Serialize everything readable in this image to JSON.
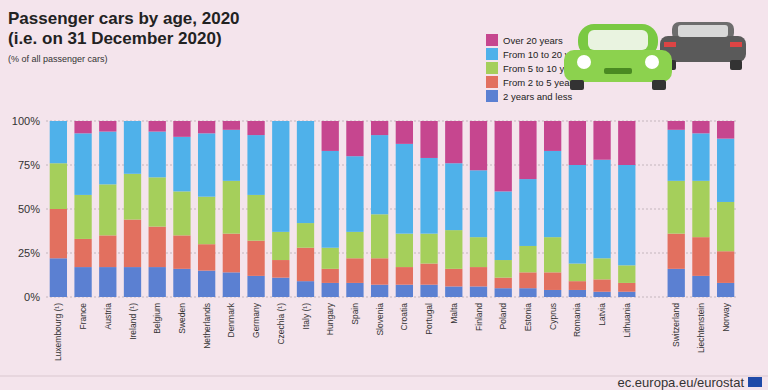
{
  "chart_data": {
    "type": "bar",
    "stacked": true,
    "title": "Passenger cars by age, 2020",
    "subtitle": "(i.e. on 31 December 2020)",
    "y_label": "(% of all passenger cars)",
    "source": "ec.europa.eu/eurostat",
    "legend": "upper right",
    "grid": true,
    "ylim": [
      0,
      100
    ],
    "yticks": [
      {
        "value": 0,
        "label": "0%"
      },
      {
        "value": 25,
        "label": "25%"
      },
      {
        "value": 50,
        "label": "50%"
      },
      {
        "value": 75,
        "label": "75%"
      },
      {
        "value": 100,
        "label": "100%"
      }
    ],
    "categories": [
      "Luxembourg (¹)",
      "France",
      "Austria",
      "Ireland (¹)",
      "Belgium",
      "Sweden",
      "Netherlands",
      "Denmark",
      "Germany",
      "Czechia (¹)",
      "Italy (¹)",
      "Hungary",
      "Spain",
      "Slovenia",
      "Croatia",
      "Portugal",
      "Malta",
      "Finland",
      "Poland",
      "Estonia",
      "Cyprus",
      "Romania",
      "Latvia",
      "Lithuania",
      null,
      "Switzerland",
      "Liechtenstein",
      "Norway"
    ],
    "series": [
      {
        "name": "2 years and less",
        "color": "#5b80d2",
        "values": [
          22,
          17,
          17,
          17,
          17,
          16,
          15,
          14,
          12,
          11,
          9,
          8,
          8,
          7,
          7,
          7,
          6,
          6,
          5,
          5,
          4,
          4,
          3,
          3,
          null,
          16,
          12,
          8
        ]
      },
      {
        "name": "From 2 to 5 years",
        "color": "#e2705f",
        "values": [
          28,
          16,
          18,
          27,
          23,
          19,
          15,
          22,
          20,
          10,
          19,
          8,
          14,
          15,
          10,
          12,
          10,
          11,
          6,
          9,
          10,
          5,
          7,
          5,
          null,
          20,
          22,
          18
        ]
      },
      {
        "name": "From 5 to 10 years",
        "color": "#a5cf5b",
        "values": [
          26,
          25,
          29,
          26,
          28,
          25,
          27,
          30,
          26,
          16,
          14,
          12,
          15,
          25,
          19,
          17,
          22,
          17,
          10,
          15,
          20,
          10,
          12,
          10,
          null,
          30,
          32,
          28
        ]
      },
      {
        "name": "From 10 to 20 years",
        "color": "#4fb1ea",
        "values": [
          24,
          35,
          30,
          30,
          26,
          31,
          36,
          29,
          34,
          63,
          58,
          55,
          43,
          45,
          51,
          43,
          38,
          38,
          39,
          38,
          49,
          56,
          56,
          57,
          null,
          29,
          27,
          36
        ]
      },
      {
        "name": "Over 20 years",
        "color": "#c6468f",
        "values": [
          0,
          7,
          6,
          0,
          6,
          9,
          7,
          5,
          8,
          0,
          0,
          17,
          20,
          8,
          13,
          21,
          24,
          28,
          40,
          33,
          17,
          25,
          22,
          25,
          null,
          5,
          7,
          10
        ]
      }
    ]
  }
}
